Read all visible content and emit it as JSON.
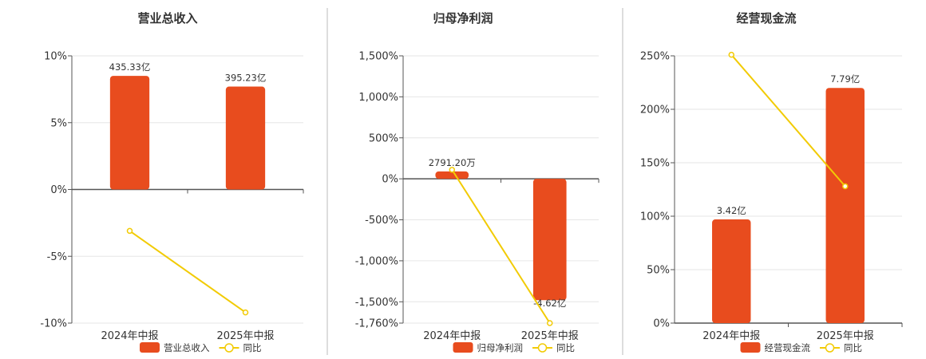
{
  "colors": {
    "bar": "#e84c1e",
    "line": "#f2cb05",
    "grid": "#e6e6e6",
    "axis": "#555555",
    "divider": "#bbbbbb"
  },
  "chart_data": [
    {
      "type": "bar",
      "title": "营业总收入",
      "categories": [
        "2024年中报",
        "2025年中报"
      ],
      "ylim": [
        -10,
        10
      ],
      "yticks": [
        10,
        5,
        0,
        -5,
        -10
      ],
      "ytick_labels": [
        "10%",
        "5%",
        "0%",
        "-5%",
        "-10%"
      ],
      "grid": true,
      "legend_position": "bottom-center",
      "series": [
        {
          "name": "营业总收入",
          "type": "bar",
          "values": [
            8.5,
            7.7
          ],
          "labels": [
            "435.33亿",
            "395.23亿"
          ]
        },
        {
          "name": "同比",
          "type": "line",
          "values": [
            -3.1,
            -9.2
          ]
        }
      ]
    },
    {
      "type": "bar",
      "title": "归母净利润",
      "categories": [
        "2024年中报",
        "2025年中报"
      ],
      "ylim": [
        -1760,
        1500
      ],
      "yticks": [
        1500,
        1000,
        500,
        0,
        -500,
        -1000,
        -1500,
        -1760
      ],
      "ytick_labels": [
        "1,500%",
        "1,000%",
        "500%",
        "0%",
        "-500%",
        "-1,000%",
        "-1,500%",
        "-1,760%"
      ],
      "grid": true,
      "legend_position": "bottom-center",
      "series": [
        {
          "name": "归母净利润",
          "type": "bar",
          "values": [
            90,
            -1480
          ],
          "labels": [
            "2791.20万",
            "-4.62亿"
          ]
        },
        {
          "name": "同比",
          "type": "line",
          "values": [
            110,
            -1760
          ]
        }
      ]
    },
    {
      "type": "bar",
      "title": "经营现金流",
      "categories": [
        "2024年中报",
        "2025年中报"
      ],
      "ylim": [
        0,
        250
      ],
      "yticks": [
        250,
        200,
        150,
        100,
        50,
        0
      ],
      "ytick_labels": [
        "250%",
        "200%",
        "150%",
        "100%",
        "50%",
        "0%"
      ],
      "grid": true,
      "legend_position": "bottom-center",
      "series": [
        {
          "name": "经营现金流",
          "type": "bar",
          "values": [
            97,
            220
          ],
          "labels": [
            "3.42亿",
            "7.79亿"
          ]
        },
        {
          "name": "同比",
          "type": "line",
          "values": [
            251,
            128
          ]
        }
      ]
    }
  ]
}
